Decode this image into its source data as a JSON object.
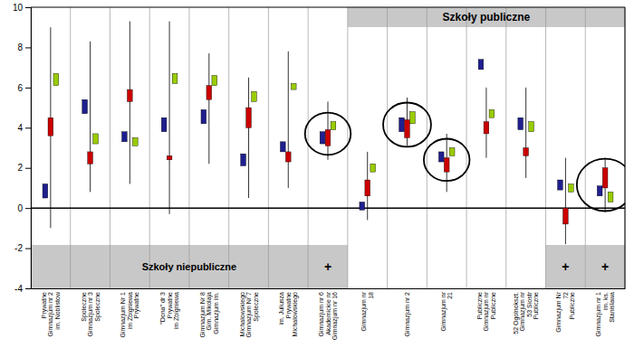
{
  "chart_data": {
    "type": "range",
    "categories": [
      "Prywatne\nGimnazjum nr 2\nim. Noblistow",
      "Spoleczne\nGimnazjum nr 3\nSpoleczne",
      "Gimnazjum Nr 1\nim Zbigniewa\nPrywatne",
      "\"Dona\" dr 3\nPrywatne\nim Zbigniewa",
      "Gimnazjum Nr 8\nGim. Mikolaja\nGimnazjum im.",
      "Michalowskiego\nGimnazjum Nr 7\nSpoleczne",
      "im. Juliusza\nPrywatne\nMichalowskiego",
      "Gimnazjum nr 6\nAkademickie nr\nGimnazjum nr 16",
      "Gimnazjum nr\n18",
      "Gimnazjum nr 2",
      "Gimnazjum nr\n21",
      "Publiczne\nGimnazjum nr\nPubliczne",
      "52 Ogolnokszt.\nGimnazjum nr\n53 Siostr\nPubliczne",
      "Gimnazjum Nr\n72\nPubliczne",
      "Gimnazjum nr 1\nim. ks.\nStanislawa"
    ],
    "series": [
      {
        "color": "#1F1F8F",
        "values": [
          [
            0.5,
            1.2
          ],
          [
            4.7,
            5.4
          ],
          [
            3.3,
            3.8
          ],
          [
            3.8,
            4.5
          ],
          [
            4.2,
            4.9
          ],
          [
            2.1,
            2.7
          ],
          [
            2.8,
            3.3
          ],
          [
            3.2,
            3.8
          ],
          [
            -0.1,
            0.3
          ],
          [
            3.8,
            4.5
          ],
          [
            2.3,
            2.8
          ],
          [
            6.9,
            7.4
          ],
          [
            3.9,
            4.5
          ],
          [
            0.9,
            1.4
          ],
          [
            0.6,
            1.1
          ]
        ]
      },
      {
        "color": "#CC0000",
        "values": [
          [
            3.6,
            4.5
          ],
          [
            2.2,
            2.8
          ],
          [
            5.3,
            5.9
          ],
          [
            2.4,
            2.6
          ],
          [
            5.4,
            6.1
          ],
          [
            4.0,
            5.0
          ],
          [
            2.3,
            2.8
          ],
          [
            3.1,
            3.9
          ],
          [
            0.6,
            1.4
          ],
          [
            3.5,
            4.4
          ],
          [
            1.8,
            2.5
          ],
          [
            3.7,
            4.3
          ],
          [
            2.6,
            3.0
          ],
          [
            -0.8,
            0.0
          ],
          [
            1.0,
            2.0
          ]
        ]
      },
      {
        "color": "#99CC00",
        "values": [
          [
            6.1,
            6.7
          ],
          [
            3.2,
            3.7
          ],
          [
            3.1,
            3.5
          ],
          [
            6.2,
            6.7
          ],
          [
            6.1,
            6.6
          ],
          [
            5.3,
            5.8
          ],
          [
            5.9,
            6.2
          ],
          [
            3.9,
            4.3
          ],
          [
            1.8,
            2.2
          ],
          [
            4.2,
            4.8
          ],
          [
            2.6,
            3.0
          ],
          [
            4.5,
            4.9
          ],
          [
            3.8,
            4.3
          ],
          [
            0.8,
            1.2
          ],
          [
            0.3,
            0.8
          ]
        ]
      }
    ],
    "whiskers": [
      [
        -1.0,
        9.0
      ],
      [
        0.8,
        8.3
      ],
      [
        1.2,
        9.3
      ],
      [
        -0.3,
        9.3
      ],
      [
        2.2,
        7.7
      ],
      [
        0.5,
        6.5
      ],
      [
        1.0,
        7.8
      ],
      [
        2.4,
        5.3
      ],
      [
        -0.6,
        2.8
      ],
      [
        3.1,
        5.5
      ],
      [
        0.8,
        3.7
      ],
      [
        2.5,
        6.0
      ],
      [
        1.5,
        6.0
      ],
      [
        -1.8,
        2.5
      ],
      [
        -0.2,
        2.5
      ]
    ],
    "circled": [
      false,
      false,
      false,
      false,
      false,
      false,
      false,
      true,
      false,
      true,
      true,
      false,
      false,
      false,
      true
    ],
    "plus": [
      false,
      false,
      false,
      false,
      false,
      false,
      false,
      true,
      false,
      false,
      false,
      false,
      false,
      true,
      true
    ],
    "plus_text": "+",
    "groups": [
      {
        "label": "Szkoły niepubliczne",
        "side": "bottom"
      },
      {
        "label": "Szkoły publiczne",
        "side": "top"
      }
    ],
    "category_group": [
      0,
      0,
      0,
      0,
      0,
      0,
      0,
      0,
      1,
      1,
      1,
      1,
      1,
      1,
      1
    ],
    "band_color": "#C8C8C8",
    "ylim": [
      -4,
      10
    ],
    "yticks": [
      -4,
      -2,
      0,
      2,
      4,
      6,
      8,
      10
    ],
    "grid": "x"
  }
}
